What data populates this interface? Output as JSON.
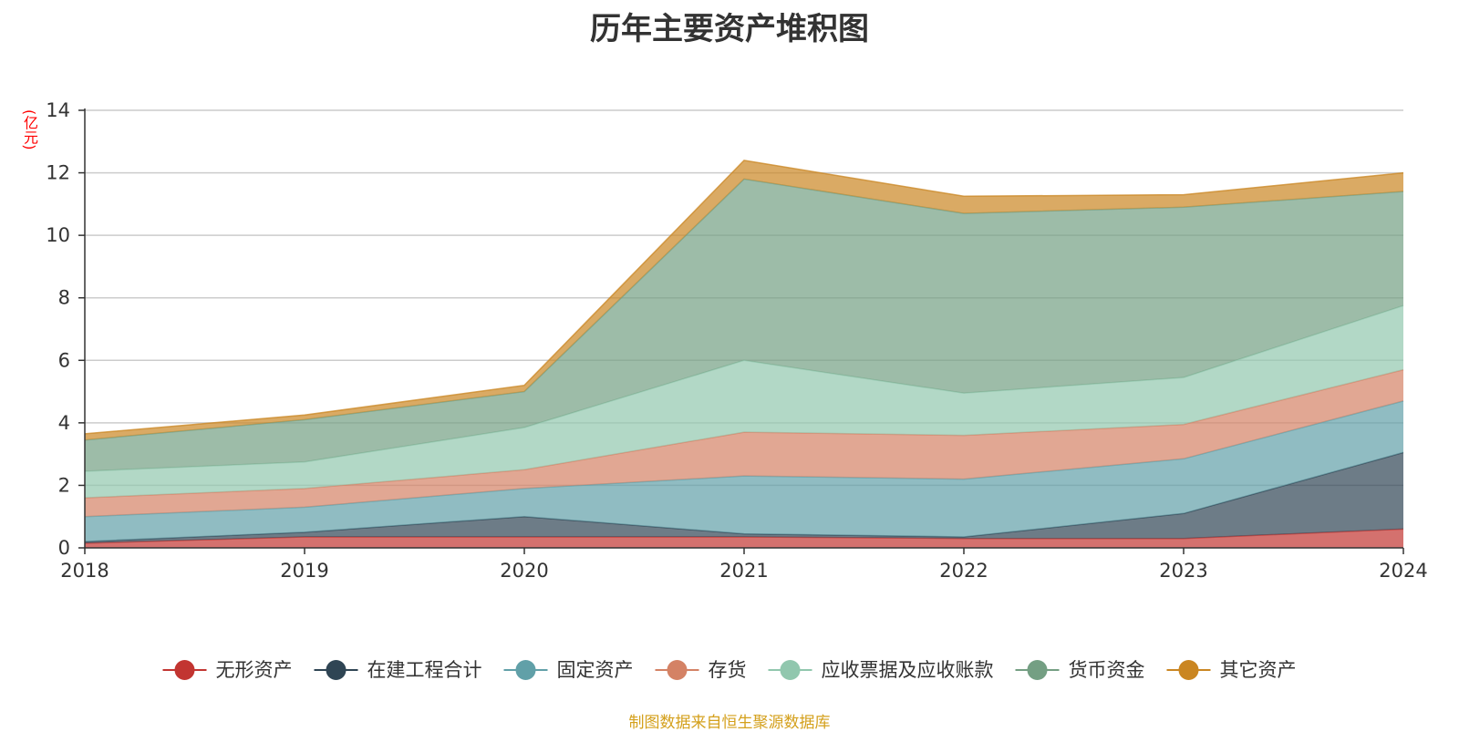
{
  "chart_data": {
    "type": "area",
    "stacked": true,
    "title": "历年主要资产堆积图",
    "unit_label": "(亿元)",
    "source": "制图数据来自恒生聚源数据库",
    "x": [
      "2018",
      "2019",
      "2020",
      "2021",
      "2022",
      "2023",
      "2024"
    ],
    "ylim": [
      0,
      14
    ],
    "yticks": [
      "0",
      "2",
      "4",
      "6",
      "8",
      "10",
      "12",
      "14"
    ],
    "grid": true,
    "legend_position": "bottom",
    "series": [
      {
        "name": "无形资产",
        "color": "#c23531",
        "values": [
          0.15,
          0.35,
          0.35,
          0.35,
          0.3,
          0.3,
          0.6
        ]
      },
      {
        "name": "在建工程合计",
        "color": "#2f4554",
        "values": [
          0.05,
          0.15,
          0.65,
          0.1,
          0.05,
          0.8,
          2.45
        ]
      },
      {
        "name": "固定资产",
        "color": "#61a0a8",
        "values": [
          0.8,
          0.8,
          0.9,
          1.85,
          1.85,
          1.75,
          1.65
        ]
      },
      {
        "name": "存货",
        "color": "#d48265",
        "values": [
          0.6,
          0.6,
          0.6,
          1.4,
          1.4,
          1.1,
          1.0
        ]
      },
      {
        "name": "应收票据及应收账款",
        "color": "#91c7ae",
        "values": [
          0.85,
          0.85,
          1.35,
          2.3,
          1.35,
          1.5,
          2.05
        ]
      },
      {
        "name": "货币资金",
        "color": "#749f83",
        "values": [
          1.0,
          1.35,
          1.15,
          5.8,
          5.75,
          5.45,
          3.65
        ]
      },
      {
        "name": "其它资产",
        "color": "#ca8622",
        "values": [
          0.2,
          0.15,
          0.2,
          0.6,
          0.55,
          0.4,
          0.6
        ]
      }
    ]
  }
}
